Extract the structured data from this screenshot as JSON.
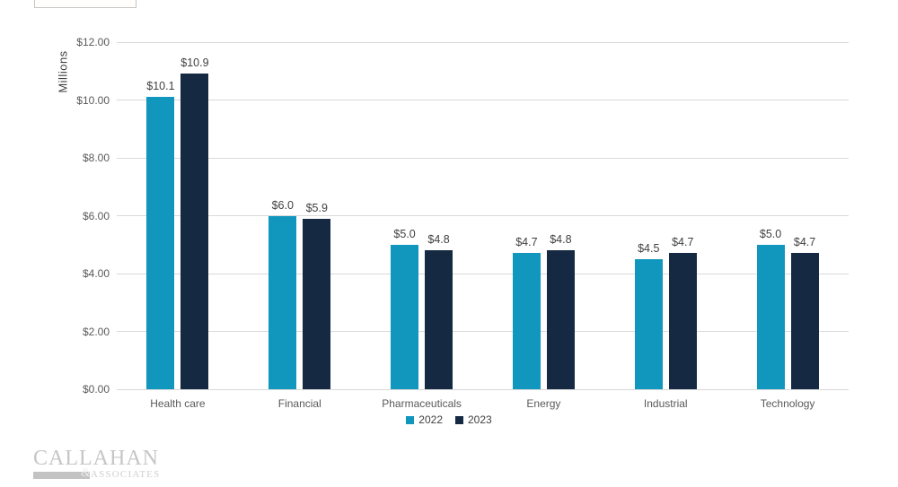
{
  "chart_data": {
    "type": "bar",
    "title": "",
    "ylabel": "Millions",
    "xlabel": "",
    "ylim": [
      0,
      12
    ],
    "grid": true,
    "gridline_color": "#d9d9d9",
    "legend_position": "bottom-center",
    "yticks": [
      {
        "value": 0,
        "label": "$0.00"
      },
      {
        "value": 2,
        "label": "$2.00"
      },
      {
        "value": 4,
        "label": "$4.00"
      },
      {
        "value": 6,
        "label": "$6.00"
      },
      {
        "value": 8,
        "label": "$8.00"
      },
      {
        "value": 10,
        "label": "$10.00"
      },
      {
        "value": 12,
        "label": "$12.00"
      }
    ],
    "categories": [
      "Health care",
      "Financial",
      "Pharmaceuticals",
      "Energy",
      "Industrial",
      "Technology"
    ],
    "series": [
      {
        "name": "2022",
        "color": "#1196BE",
        "values": [
          10.1,
          6.0,
          5.0,
          4.7,
          4.5,
          5.0
        ],
        "labels": [
          "$10.1",
          "$6.0",
          "$5.0",
          "$4.7",
          "$4.5",
          "$5.0"
        ]
      },
      {
        "name": "2023",
        "color": "#152A42",
        "values": [
          10.9,
          5.9,
          4.8,
          4.8,
          4.7,
          4.7
        ],
        "labels": [
          "$10.9",
          "$5.9",
          "$4.8",
          "$4.8",
          "$4.7",
          "$4.7"
        ]
      }
    ]
  },
  "colors": {
    "axis_text": "#595959",
    "data_label_text": "#404040",
    "background": "#ffffff"
  },
  "logo": {
    "name": "CALLAHAN",
    "amp": "&",
    "sub": "ASSOCIATES"
  }
}
